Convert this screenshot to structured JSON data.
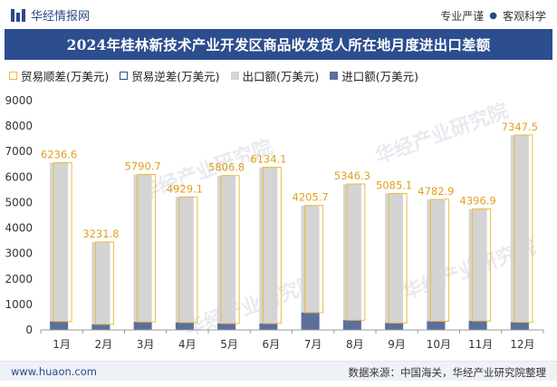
{
  "header": {
    "brand": "华经情报网",
    "tag_left": "专业严谨",
    "tag_right": "客观科学"
  },
  "title": "2024年桂林新技术产业开发区商品收发货人所在地月度进出口差额",
  "legend": [
    {
      "label": "贸易顺差(万美元)",
      "kind": "outline",
      "color": "#f0b83a"
    },
    {
      "label": "贸易逆差(万美元)",
      "kind": "outline",
      "color": "#2c4d8e"
    },
    {
      "label": "出口额(万美元)",
      "kind": "fill",
      "color": "#d4d4d4"
    },
    {
      "label": "进口额(万美元)",
      "kind": "fill",
      "color": "#5a6f9e"
    }
  ],
  "watermark": "华经产业研究院",
  "footer": {
    "url": "www.huaon.com",
    "source": "数据来源：中国海关，华经产业研究院整理"
  },
  "chart_data": {
    "type": "bar",
    "categories": [
      "1月",
      "2月",
      "3月",
      "4月",
      "5月",
      "6月",
      "7月",
      "8月",
      "9月",
      "10月",
      "11月",
      "12月"
    ],
    "series": [
      {
        "name": "贸易顺差(万美元)",
        "values": [
          6236.6,
          3231.8,
          5790.7,
          4929.1,
          5806.8,
          6134.1,
          4205.7,
          5346.3,
          5085.1,
          4782.9,
          4396.9,
          7347.5
        ]
      },
      {
        "name": "贸易逆差(万美元)",
        "values": [
          0,
          0,
          0,
          0,
          0,
          0,
          0,
          0,
          0,
          0,
          0,
          0
        ]
      },
      {
        "name": "出口额(万美元)",
        "values": [
          6560,
          3450,
          6100,
          5220,
          6050,
          6380,
          4880,
          5720,
          5360,
          5120,
          4740,
          7640
        ]
      },
      {
        "name": "进口额(万美元)",
        "values": [
          330,
          220,
          310,
          290,
          250,
          250,
          680,
          380,
          270,
          340,
          350,
          300
        ]
      }
    ],
    "data_labels": [
      "6236.6",
      "3231.8",
      "5790.7",
      "4929.1",
      "5806.8",
      "6134.1",
      "4205.7",
      "5346.3",
      "5085.1",
      "4782.9",
      "4396.9",
      "7347.5"
    ],
    "ylim": [
      0,
      9000
    ],
    "yticks": [
      0,
      1000,
      2000,
      3000,
      4000,
      5000,
      6000,
      7000,
      8000,
      9000
    ],
    "grid": false,
    "legend_position": "top-left",
    "colors": {
      "surplus": "#f0b83a",
      "deficit": "#2c4d8e",
      "export": "#d4d4d4",
      "import": "#5a6f9e",
      "label": "#e0a020"
    }
  }
}
